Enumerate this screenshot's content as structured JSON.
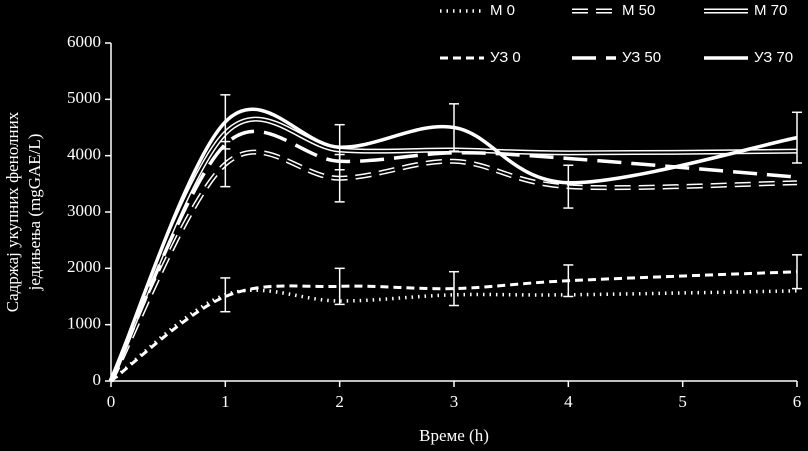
{
  "chart_data": {
    "type": "line",
    "x_label": "Време (h)",
    "y_label": [
      "Садржај укупних фенолних",
      "једињења (mgGAE/L)"
    ],
    "x": [
      0,
      1,
      2,
      3,
      4,
      6
    ],
    "xlim": [
      0,
      6
    ],
    "xticks": [
      0,
      1,
      2,
      3,
      4,
      5,
      6
    ],
    "ylim": [
      0,
      6000
    ],
    "yticks": [
      0,
      1000,
      2000,
      3000,
      4000,
      5000,
      6000
    ],
    "background": "#000000",
    "series": [
      {
        "name": "М 0",
        "color": "#ffffff",
        "dash": "1.5 5",
        "width": 3.5,
        "double": false,
        "values": [
          0,
          1530,
          1420,
          1530,
          1530,
          1600
        ],
        "errors": [
          null,
          300,
          null,
          null,
          null,
          null
        ]
      },
      {
        "name": "М 50",
        "color": "#ffffff",
        "dash": "16 8",
        "width": 5,
        "double": true,
        "values": [
          0,
          3850,
          3600,
          3900,
          3450,
          3520
        ],
        "errors": [
          null,
          400,
          420,
          null,
          380,
          null
        ]
      },
      {
        "name": "М 70",
        "color": "#ffffff",
        "dash": "none",
        "width": 5,
        "double": true,
        "values": [
          0,
          4400,
          4100,
          4100,
          4050,
          4080
        ],
        "errors": [
          null,
          null,
          null,
          null,
          null,
          null
        ]
      },
      {
        "name": "УЗ 0",
        "color": "#ffffff",
        "dash": "8 5",
        "width": 3,
        "double": false,
        "values": [
          0,
          1500,
          1680,
          1640,
          1780,
          1940
        ],
        "errors": [
          null,
          null,
          320,
          300,
          280,
          300
        ]
      },
      {
        "name": "УЗ 50",
        "color": "#ffffff",
        "dash": "24 10",
        "width": 3.5,
        "double": false,
        "values": [
          0,
          4200,
          3900,
          4050,
          3950,
          3620
        ],
        "errors": [
          null,
          null,
          null,
          null,
          null,
          null
        ]
      },
      {
        "name": "УЗ 70",
        "color": "#ffffff",
        "dash": "none",
        "width": 3.5,
        "double": false,
        "values": [
          0,
          4600,
          4150,
          4500,
          3520,
          4320
        ],
        "errors": [
          null,
          480,
          400,
          420,
          null,
          450
        ]
      }
    ]
  }
}
